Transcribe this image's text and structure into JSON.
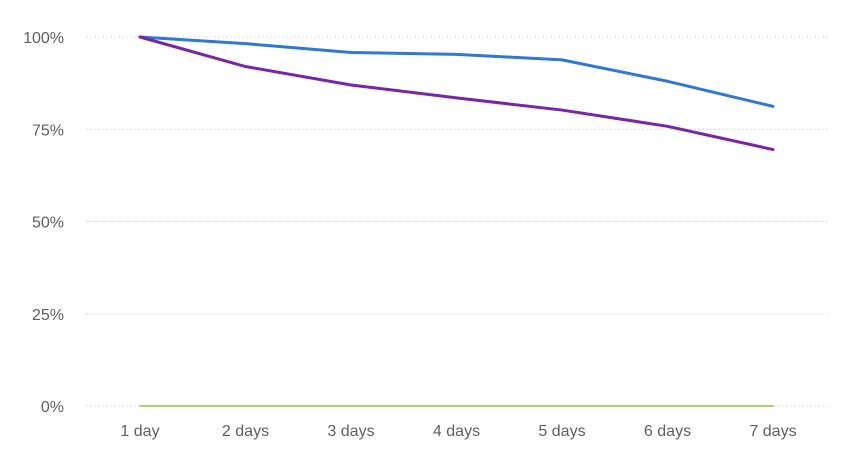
{
  "chart_data": {
    "type": "line",
    "title": "",
    "xlabel": "",
    "ylabel": "",
    "categories": [
      "1 day",
      "2 days",
      "3 days",
      "4 days",
      "5 days",
      "6 days",
      "7 days"
    ],
    "y_ticks": [
      {
        "value": 0,
        "label": "0%"
      },
      {
        "value": 25,
        "label": "25%"
      },
      {
        "value": 50,
        "label": "50%"
      },
      {
        "value": 75,
        "label": "75%"
      },
      {
        "value": 100,
        "label": "100%"
      }
    ],
    "ylim": [
      0,
      100
    ],
    "grid": "horizontal-dotted",
    "legend": "none",
    "series": [
      {
        "color": "#2f78d6",
        "values": [
          100,
          98.2,
          95.8,
          95.3,
          93.8,
          88,
          81.2
        ]
      },
      {
        "color": "#7a24a8",
        "values": [
          100,
          92,
          87,
          83.5,
          80.2,
          75.8,
          69.5
        ]
      },
      {
        "color": "#8cc63f",
        "values": [
          0,
          0,
          0,
          0,
          0,
          0,
          0
        ]
      }
    ]
  }
}
